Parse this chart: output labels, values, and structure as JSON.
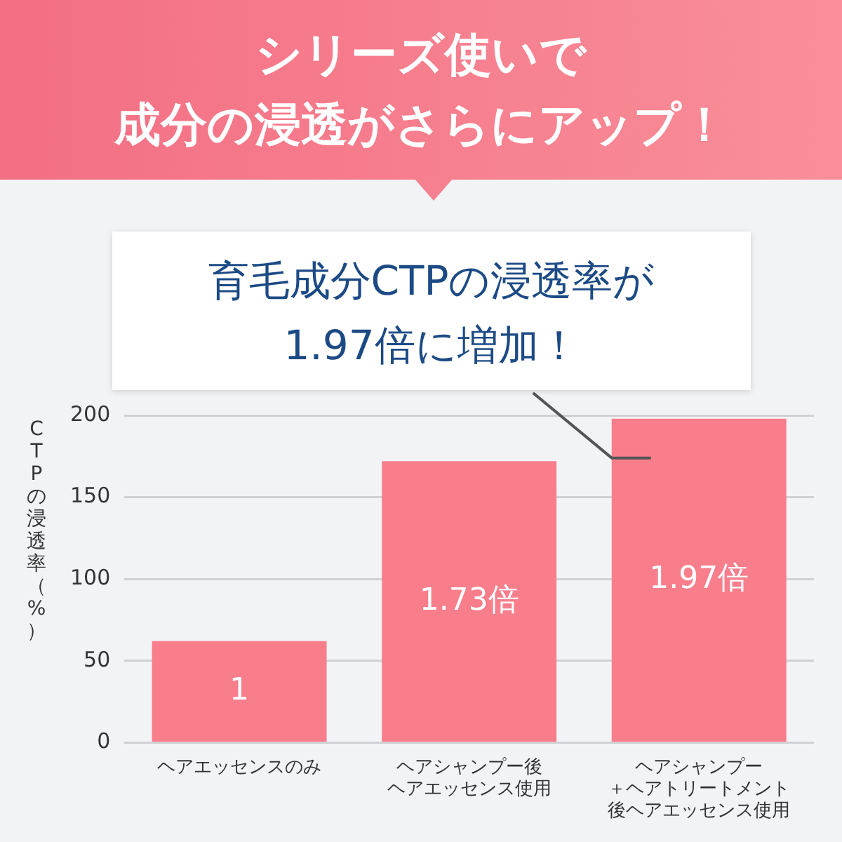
{
  "chart_data": {
    "type": "bar",
    "title": "シリーズ使いで",
    "subtitle": "成分の浸透がさらにアップ！",
    "ylabel": "CTPの浸透率（%）",
    "annotations": [
      "育毛成分CTPの浸透率が1.97倍に増加！",
      "1",
      "1.73倍",
      "1.97倍"
    ],
    "categories": [
      "ヘアエッセンスのみ",
      "ヘアシャンプー後ヘアエッセンス使用",
      "ヘアシャンプー＋ヘアトリートメント後ヘアエッセンス使用"
    ],
    "values": [
      62,
      172,
      198
    ],
    "color": "#f87e8c",
    "ylim": [
      0,
      200
    ],
    "yticks": [
      0,
      50,
      100,
      150,
      200
    ],
    "grid": "y",
    "legend": false
  }
}
